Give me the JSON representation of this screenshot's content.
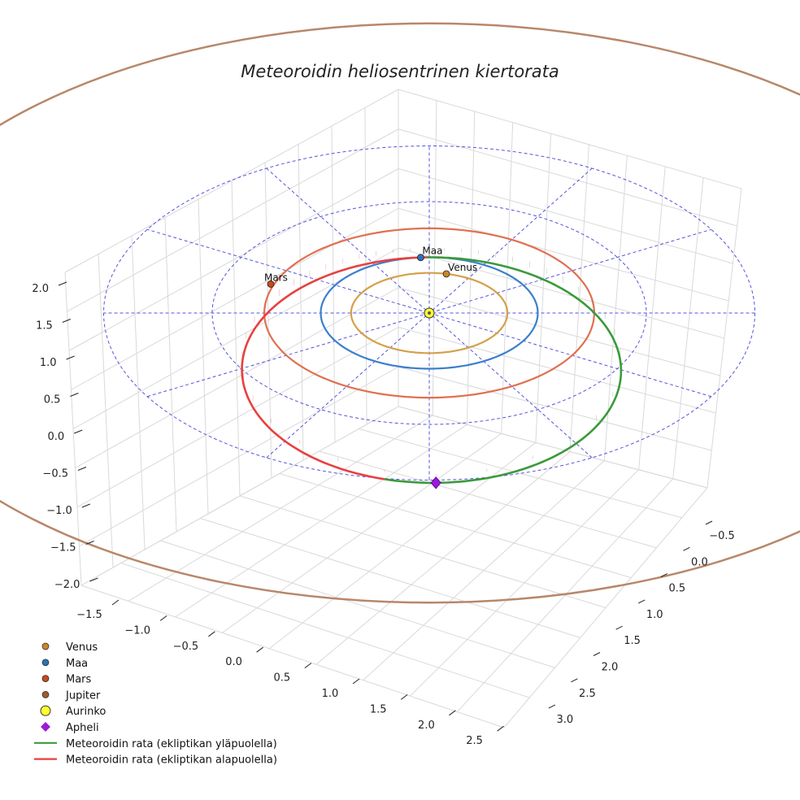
{
  "chart_data": {
    "type": "scatter",
    "projection": "3d",
    "title": "Meteoroidin heliosentrinen kiertorata",
    "xlabel": "",
    "ylabel": "",
    "zlabel": "",
    "x_ticks": [
      "−1.5",
      "−1.0",
      "−0.5",
      "0.0",
      "0.5",
      "1.0",
      "1.5",
      "2.0",
      "2.5"
    ],
    "y_ticks": [
      "−0.5",
      "0.0",
      "0.5",
      "1.0",
      "1.5",
      "2.0",
      "2.5",
      "3.0"
    ],
    "z_ticks": [
      "2.0",
      "1.5",
      "1.0",
      "0.5",
      "0.0",
      "−0.5",
      "−1.0",
      "−1.5",
      "−2.0"
    ],
    "grid": true,
    "legend_position": "bottom-left",
    "planets": [
      {
        "name": "Venus",
        "label": "Venus",
        "orbit_radius": 0.72,
        "color": "#c8872a",
        "orbit_color": "#d4a04a"
      },
      {
        "name": "Maa",
        "label": "Maa",
        "orbit_radius": 1.0,
        "color": "#2a72b8",
        "orbit_color": "#3a7fcc"
      },
      {
        "name": "Mars",
        "label": "Mars",
        "orbit_radius": 1.52,
        "color": "#c84a1a",
        "orbit_color": "#e07050"
      },
      {
        "name": "Jupiter",
        "label": "",
        "orbit_radius": 5.2,
        "color": "#a05a30",
        "orbit_color": "#b8876a"
      }
    ],
    "sun": {
      "name": "Aurinko",
      "color": "#ffff33"
    },
    "aphelion": {
      "name": "Apheli",
      "color": "#9a1ad8"
    },
    "meteoroid_orbit": {
      "perihelion_au": 1.0,
      "aphelion_au": 3.05,
      "above_color": "#3a9a3a",
      "below_color": "#e84040",
      "series": [
        {
          "name": "Meteoroidin rata (ekliptikan yläpuolella)"
        },
        {
          "name": "Meteoroidin rata (ekliptikan alapuolella)"
        }
      ]
    },
    "reference_circles_au": [
      2.0,
      3.0
    ],
    "reference_color": "#5555dd",
    "legend": [
      {
        "label": "Venus",
        "marker": "dot",
        "color": "#c8872a"
      },
      {
        "label": "Maa",
        "marker": "dot",
        "color": "#2a72b8"
      },
      {
        "label": "Mars",
        "marker": "dot",
        "color": "#c84a1a"
      },
      {
        "label": "Jupiter",
        "marker": "dot",
        "color": "#a05a30"
      },
      {
        "label": "Aurinko",
        "marker": "bigdot",
        "color": "#ffff33"
      },
      {
        "label": "Apheli",
        "marker": "diamond",
        "color": "#9a1ad8"
      },
      {
        "label": "Meteoroidin rata (ekliptikan yläpuolella)",
        "marker": "line",
        "color": "#3a9a3a"
      },
      {
        "label": "Meteoroidin rata (ekliptikan alapuolella)",
        "marker": "line",
        "color": "#e84040"
      }
    ]
  }
}
